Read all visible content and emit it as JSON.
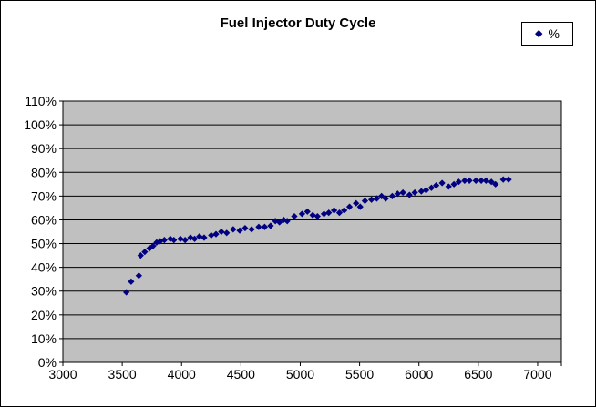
{
  "window": {
    "background": "#FFFFFF",
    "border_color": "#000000"
  },
  "chart_data": {
    "type": "scatter",
    "title": "Fuel Injector Duty Cycle",
    "xlabel": "",
    "ylabel": "",
    "plot_bg": "#C0C0C0",
    "gridline_color": "#000000",
    "grid": "horizontal-only",
    "legend": {
      "position": "top-right",
      "entries": [
        {
          "label": "%",
          "marker": "diamond",
          "color": "#000080"
        }
      ]
    },
    "xlim": [
      3000,
      7200
    ],
    "ylim": [
      0,
      110
    ],
    "xticks": [
      {
        "v": 3000,
        "label": "3000"
      },
      {
        "v": 3500,
        "label": "3500"
      },
      {
        "v": 4000,
        "label": "4000"
      },
      {
        "v": 4500,
        "label": "4500"
      },
      {
        "v": 5000,
        "label": "5000"
      },
      {
        "v": 5500,
        "label": "5500"
      },
      {
        "v": 6000,
        "label": "6000"
      },
      {
        "v": 6500,
        "label": "6500"
      },
      {
        "v": 7000,
        "label": "7000"
      }
    ],
    "yticks": [
      {
        "v": 0,
        "label": "0%"
      },
      {
        "v": 10,
        "label": "10%"
      },
      {
        "v": 20,
        "label": "20%"
      },
      {
        "v": 30,
        "label": "30%"
      },
      {
        "v": 40,
        "label": "40%"
      },
      {
        "v": 50,
        "label": "50%"
      },
      {
        "v": 60,
        "label": "60%"
      },
      {
        "v": 70,
        "label": "70%"
      },
      {
        "v": 80,
        "label": "80%"
      },
      {
        "v": 90,
        "label": "90%"
      },
      {
        "v": 100,
        "label": "100%"
      },
      {
        "v": 110,
        "label": "110%"
      }
    ],
    "series": [
      {
        "name": "%",
        "marker": "diamond",
        "color": "#000080",
        "points": [
          [
            3535,
            29.5
          ],
          [
            3575,
            34
          ],
          [
            3640,
            36.5
          ],
          [
            3655,
            45
          ],
          [
            3690,
            46.5
          ],
          [
            3730,
            48
          ],
          [
            3760,
            49
          ],
          [
            3790,
            50.5
          ],
          [
            3820,
            51
          ],
          [
            3855,
            51.5
          ],
          [
            3905,
            52
          ],
          [
            3935,
            51.5
          ],
          [
            3990,
            52
          ],
          [
            4030,
            51.5
          ],
          [
            4075,
            52.5
          ],
          [
            4110,
            52
          ],
          [
            4150,
            53
          ],
          [
            4190,
            52.5
          ],
          [
            4250,
            53.5
          ],
          [
            4290,
            54
          ],
          [
            4335,
            55
          ],
          [
            4380,
            54.5
          ],
          [
            4435,
            56
          ],
          [
            4490,
            55.5
          ],
          [
            4535,
            56.5
          ],
          [
            4590,
            56
          ],
          [
            4650,
            57
          ],
          [
            4700,
            57
          ],
          [
            4750,
            57.5
          ],
          [
            4790,
            59.5
          ],
          [
            4825,
            59
          ],
          [
            4860,
            60
          ],
          [
            4890,
            59.5
          ],
          [
            4950,
            61.5
          ],
          [
            5015,
            62.5
          ],
          [
            5060,
            63.5
          ],
          [
            5105,
            62
          ],
          [
            5145,
            61.5
          ],
          [
            5200,
            62.5
          ],
          [
            5240,
            63
          ],
          [
            5285,
            64
          ],
          [
            5330,
            63
          ],
          [
            5370,
            64
          ],
          [
            5415,
            65.5
          ],
          [
            5470,
            67
          ],
          [
            5505,
            65.5
          ],
          [
            5545,
            68
          ],
          [
            5600,
            68.5
          ],
          [
            5645,
            69
          ],
          [
            5685,
            70
          ],
          [
            5720,
            69
          ],
          [
            5775,
            70
          ],
          [
            5820,
            71
          ],
          [
            5865,
            71.5
          ],
          [
            5920,
            70.5
          ],
          [
            5965,
            71.5
          ],
          [
            6020,
            72
          ],
          [
            6060,
            72.5
          ],
          [
            6105,
            73.5
          ],
          [
            6145,
            74.5
          ],
          [
            6195,
            75.5
          ],
          [
            6250,
            74
          ],
          [
            6295,
            75
          ],
          [
            6335,
            76
          ],
          [
            6385,
            76.5
          ],
          [
            6425,
            76.5
          ],
          [
            6480,
            76.5
          ],
          [
            6525,
            76.5
          ],
          [
            6565,
            76.5
          ],
          [
            6610,
            76
          ],
          [
            6645,
            75
          ],
          [
            6710,
            77
          ],
          [
            6755,
            77
          ]
        ]
      }
    ]
  }
}
